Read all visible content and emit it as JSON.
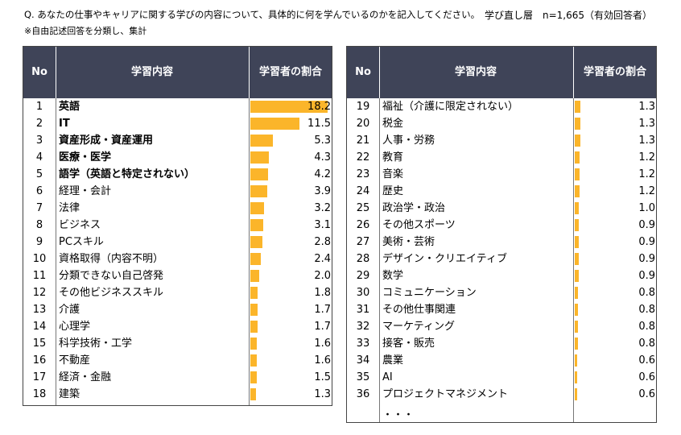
{
  "question": "Q. あなたの仕事やキャリアに関する学びの内容について、具体的に何を学んでいるのかを記入してください。",
  "meta": "学び直し層　n=1,665（有効回答者）",
  "note": "※自由記述回答を分類し、集計",
  "headers": {
    "no": "No",
    "content": "学習内容",
    "ratio": "学習者の割合"
  },
  "ellipsis": "・・・",
  "colors": {
    "header_bg": "#3f4458",
    "bar": "#fbb52a"
  },
  "chart_data": {
    "type": "bar",
    "orientation": "horizontal",
    "value_label": "学習者の割合",
    "xlim": [
      0,
      18.2
    ],
    "rows": [
      {
        "no": "1",
        "label": "英語",
        "value": "18.2",
        "bold": true
      },
      {
        "no": "2",
        "label": "IT",
        "value": "11.5",
        "bold": true
      },
      {
        "no": "3",
        "label": "資産形成・資産運用",
        "value": "5.3",
        "bold": true
      },
      {
        "no": "4",
        "label": "医療・医学",
        "value": "4.3",
        "bold": true
      },
      {
        "no": "5",
        "label": "語学（英語と特定されない）",
        "value": "4.2",
        "bold": true
      },
      {
        "no": "6",
        "label": "経理・会計",
        "value": "3.9",
        "bold": false
      },
      {
        "no": "7",
        "label": "法律",
        "value": "3.2",
        "bold": false
      },
      {
        "no": "8",
        "label": "ビジネス",
        "value": "3.1",
        "bold": false
      },
      {
        "no": "9",
        "label": "PCスキル",
        "value": "2.8",
        "bold": false
      },
      {
        "no": "10",
        "label": "資格取得（内容不明）",
        "value": "2.4",
        "bold": false
      },
      {
        "no": "11",
        "label": "分類できない自己啓発",
        "value": "2.0",
        "bold": false
      },
      {
        "no": "12",
        "label": "その他ビジネススキル",
        "value": "1.8",
        "bold": false
      },
      {
        "no": "13",
        "label": "介護",
        "value": "1.7",
        "bold": false
      },
      {
        "no": "14",
        "label": "心理学",
        "value": "1.7",
        "bold": false
      },
      {
        "no": "15",
        "label": "科学技術・工学",
        "value": "1.6",
        "bold": false
      },
      {
        "no": "16",
        "label": "不動産",
        "value": "1.6",
        "bold": false
      },
      {
        "no": "17",
        "label": "経済・金融",
        "value": "1.5",
        "bold": false
      },
      {
        "no": "18",
        "label": "建築",
        "value": "1.3",
        "bold": false
      },
      {
        "no": "19",
        "label": "福祉（介護に限定されない）",
        "value": "1.3",
        "bold": false
      },
      {
        "no": "20",
        "label": "税金",
        "value": "1.3",
        "bold": false
      },
      {
        "no": "21",
        "label": "人事・労務",
        "value": "1.3",
        "bold": false
      },
      {
        "no": "22",
        "label": "教育",
        "value": "1.2",
        "bold": false
      },
      {
        "no": "23",
        "label": "音楽",
        "value": "1.2",
        "bold": false
      },
      {
        "no": "24",
        "label": "歴史",
        "value": "1.2",
        "bold": false
      },
      {
        "no": "25",
        "label": "政治学・政治",
        "value": "1.0",
        "bold": false
      },
      {
        "no": "26",
        "label": "その他スポーツ",
        "value": "0.9",
        "bold": false
      },
      {
        "no": "27",
        "label": "美術・芸術",
        "value": "0.9",
        "bold": false
      },
      {
        "no": "28",
        "label": "デザイン・クリエイティブ",
        "value": "0.9",
        "bold": false
      },
      {
        "no": "29",
        "label": "数学",
        "value": "0.9",
        "bold": false
      },
      {
        "no": "30",
        "label": "コミュニケーション",
        "value": "0.8",
        "bold": false
      },
      {
        "no": "31",
        "label": "その他仕事関連",
        "value": "0.8",
        "bold": false
      },
      {
        "no": "32",
        "label": "マーケティング",
        "value": "0.8",
        "bold": false
      },
      {
        "no": "33",
        "label": "接客・販売",
        "value": "0.8",
        "bold": false
      },
      {
        "no": "34",
        "label": "農業",
        "value": "0.6",
        "bold": false
      },
      {
        "no": "35",
        "label": "AI",
        "value": "0.6",
        "bold": false
      },
      {
        "no": "36",
        "label": "プロジェクトマネジメント",
        "value": "0.6",
        "bold": false
      }
    ]
  }
}
